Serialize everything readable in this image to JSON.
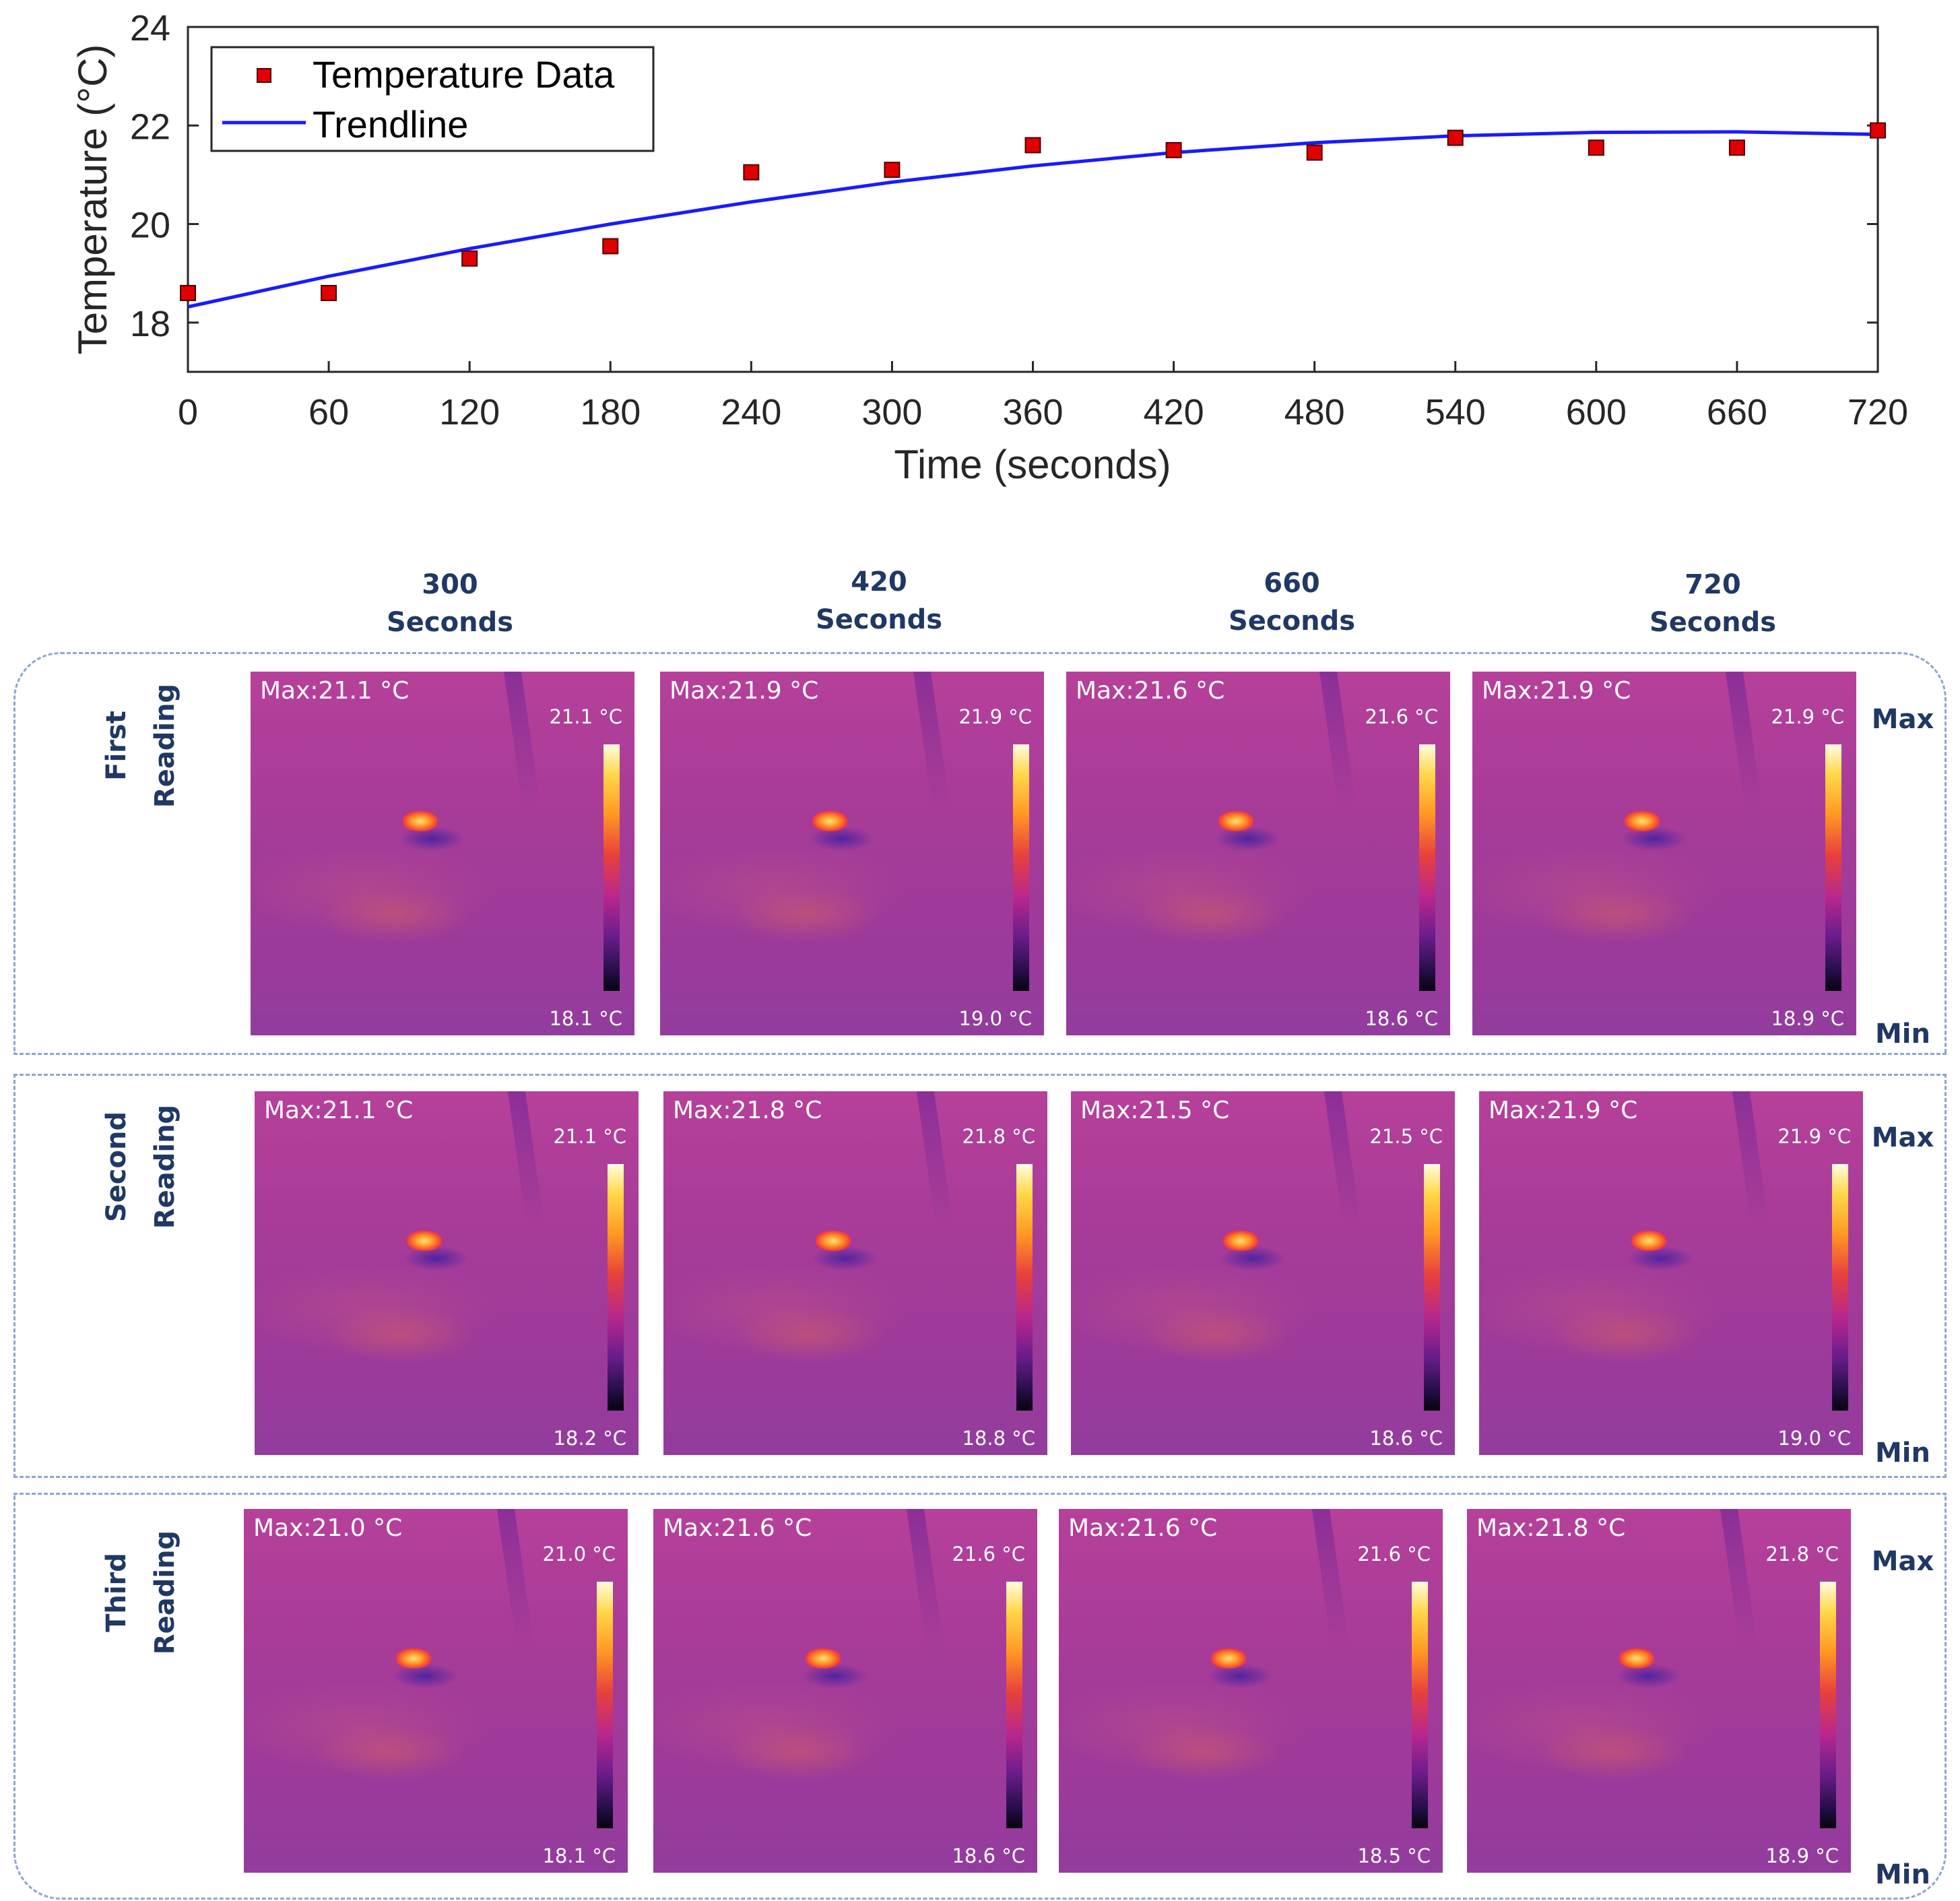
{
  "chart_data": {
    "type": "scatter",
    "title": "",
    "xlabel": "Time (seconds)",
    "ylabel": "Temperature (°C)",
    "xlim": [
      0,
      720
    ],
    "ylim": [
      17,
      24
    ],
    "xticks": [
      0,
      60,
      120,
      180,
      240,
      300,
      360,
      420,
      480,
      540,
      600,
      660,
      720
    ],
    "yticks": [
      18,
      20,
      22,
      24
    ],
    "legend": {
      "position": "top-left"
    },
    "series": [
      {
        "name": "Temperature Data",
        "marker": "square",
        "color": "#e00000",
        "x": [
          0,
          60,
          120,
          180,
          240,
          300,
          360,
          420,
          480,
          540,
          600,
          660,
          720
        ],
        "y": [
          18.6,
          18.6,
          19.3,
          19.55,
          21.05,
          21.1,
          21.6,
          21.5,
          21.45,
          21.75,
          21.55,
          21.55,
          21.9
        ]
      },
      {
        "name": "Trendline",
        "kind": "line",
        "color": "#1a1aff",
        "x": [
          0,
          60,
          120,
          180,
          240,
          300,
          360,
          420,
          480,
          540,
          600,
          660,
          720
        ],
        "y": [
          18.32,
          18.94,
          19.5,
          20.0,
          20.45,
          20.85,
          21.18,
          21.45,
          21.65,
          21.79,
          21.86,
          21.87,
          21.82
        ]
      }
    ]
  },
  "thermal": {
    "columns": [
      {
        "num": "300",
        "unit": "Seconds"
      },
      {
        "num": "420",
        "unit": "Seconds"
      },
      {
        "num": "660",
        "unit": "Seconds"
      },
      {
        "num": "720",
        "unit": "Seconds"
      }
    ],
    "max_label": "Max",
    "min_label": "Min",
    "rows": [
      {
        "label1": "First",
        "label2": "Reading",
        "images": [
          {
            "max": "Max:21.1 °C",
            "hi": "21.1 °C",
            "lo": "18.1 °C"
          },
          {
            "max": "Max:21.9 °C",
            "hi": "21.9 °C",
            "lo": "19.0 °C"
          },
          {
            "max": "Max:21.6 °C",
            "hi": "21.6 °C",
            "lo": "18.6 °C"
          },
          {
            "max": "Max:21.9 °C",
            "hi": "21.9 °C",
            "lo": "18.9 °C"
          }
        ]
      },
      {
        "label1": "Second",
        "label2": "Reading",
        "images": [
          {
            "max": "Max:21.1 °C",
            "hi": "21.1 °C",
            "lo": "18.2 °C"
          },
          {
            "max": "Max:21.8 °C",
            "hi": "21.8 °C",
            "lo": "18.8 °C"
          },
          {
            "max": "Max:21.5 °C",
            "hi": "21.5 °C",
            "lo": "18.6 °C"
          },
          {
            "max": "Max:21.9 °C",
            "hi": "21.9 °C",
            "lo": "19.0 °C"
          }
        ]
      },
      {
        "label1": "Third",
        "label2": "Reading",
        "images": [
          {
            "max": "Max:21.0 °C",
            "hi": "21.0 °C",
            "lo": "18.1 °C"
          },
          {
            "max": "Max:21.6 °C",
            "hi": "21.6 °C",
            "lo": "18.6 °C"
          },
          {
            "max": "Max:21.6 °C",
            "hi": "21.6 °C",
            "lo": "18.5 °C"
          },
          {
            "max": "Max:21.8 °C",
            "hi": "21.8 °C",
            "lo": "18.9 °C"
          }
        ]
      }
    ]
  }
}
